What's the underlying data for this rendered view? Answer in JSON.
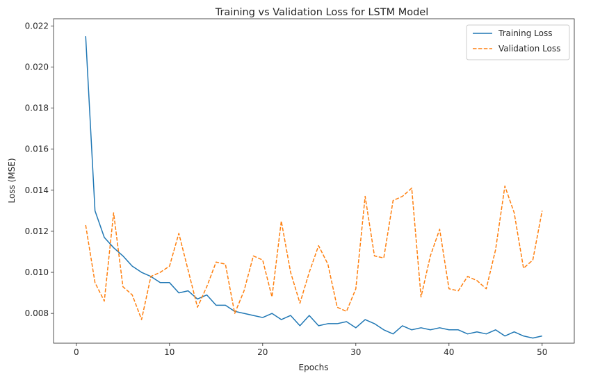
{
  "chart_data": {
    "type": "line",
    "title": "Training vs Validation Loss for LSTM Model",
    "xlabel": "Epochs",
    "ylabel": "Loss (MSE)",
    "xlim": [
      -2.45,
      53.45
    ],
    "ylim": [
      0.00655,
      0.02235
    ],
    "xticks": [
      0,
      10,
      20,
      30,
      40,
      50
    ],
    "yticks": [
      0.008,
      0.01,
      0.012,
      0.014,
      0.016,
      0.018,
      0.02,
      0.022
    ],
    "ytick_labels": [
      "0.008",
      "0.010",
      "0.012",
      "0.014",
      "0.016",
      "0.018",
      "0.020",
      "0.022"
    ],
    "grid": false,
    "legend": "top-right",
    "x": [
      1,
      2,
      3,
      4,
      5,
      6,
      7,
      8,
      9,
      10,
      11,
      12,
      13,
      14,
      15,
      16,
      17,
      18,
      19,
      20,
      21,
      22,
      23,
      24,
      25,
      26,
      27,
      28,
      29,
      30,
      31,
      32,
      33,
      34,
      35,
      36,
      37,
      38,
      39,
      40,
      41,
      42,
      43,
      44,
      45,
      46,
      47,
      48,
      49,
      50
    ],
    "series": [
      {
        "name": "Training Loss",
        "color": "#1f77b4",
        "dash": "solid",
        "values": [
          0.0215,
          0.013,
          0.0117,
          0.0112,
          0.0108,
          0.0103,
          0.01,
          0.0098,
          0.0095,
          0.0095,
          0.009,
          0.0091,
          0.0087,
          0.0089,
          0.0084,
          0.0084,
          0.0081,
          0.008,
          0.0079,
          0.0078,
          0.008,
          0.0077,
          0.0079,
          0.0074,
          0.0079,
          0.0074,
          0.0075,
          0.0075,
          0.0076,
          0.0073,
          0.0077,
          0.0075,
          0.0072,
          0.007,
          0.0074,
          0.0072,
          0.0073,
          0.0072,
          0.0073,
          0.0072,
          0.0072,
          0.007,
          0.0071,
          0.007,
          0.0072,
          0.0069,
          0.0071,
          0.0069,
          0.0068,
          0.0069
        ]
      },
      {
        "name": "Validation Loss",
        "color": "#ff7f0e",
        "dash": "dashed",
        "values": [
          0.0123,
          0.0095,
          0.0086,
          0.0129,
          0.0093,
          0.0089,
          0.0077,
          0.0098,
          0.01,
          0.0103,
          0.0119,
          0.0101,
          0.0083,
          0.0093,
          0.0105,
          0.0104,
          0.008,
          0.0091,
          0.0108,
          0.0106,
          0.0088,
          0.0125,
          0.01,
          0.0085,
          0.01,
          0.0113,
          0.0104,
          0.0083,
          0.0081,
          0.0092,
          0.0137,
          0.0108,
          0.0107,
          0.0135,
          0.0137,
          0.0141,
          0.0088,
          0.0108,
          0.0121,
          0.0092,
          0.0091,
          0.0098,
          0.0096,
          0.0092,
          0.0111,
          0.0142,
          0.0129,
          0.0102,
          0.0106,
          0.013
        ]
      }
    ]
  }
}
